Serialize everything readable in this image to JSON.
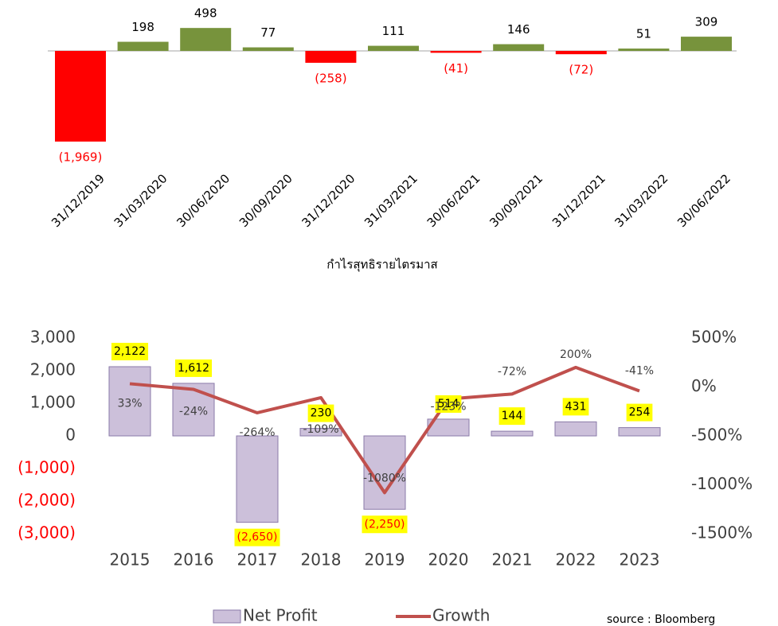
{
  "chart_data": [
    {
      "type": "bar",
      "title": "กำไรสุทธิรายไตรมาส",
      "categories": [
        "31/12/2019",
        "31/03/2020",
        "30/06/2020",
        "30/09/2020",
        "31/12/2020",
        "31/03/2021",
        "30/06/2021",
        "30/09/2021",
        "31/12/2021",
        "31/03/2022",
        "30/06/2022"
      ],
      "values": [
        -1969,
        198,
        498,
        77,
        -258,
        111,
        -41,
        146,
        -72,
        51,
        309
      ],
      "value_labels": [
        "(1,969)",
        "198",
        "498",
        "77",
        "(258)",
        "111",
        "(41)",
        "146",
        "(72)",
        "51",
        "309"
      ],
      "positive_color": "#77933c",
      "negative_color": "#ff0000"
    },
    {
      "type": "bar_line",
      "categories": [
        "2015",
        "2016",
        "2017",
        "2018",
        "2019",
        "2020",
        "2021",
        "2022",
        "2023"
      ],
      "series": [
        {
          "name": "Net Profit",
          "type": "bar",
          "color": "#ccc0da",
          "values": [
            2122,
            1612,
            -2650,
            230,
            -2250,
            514,
            144,
            431,
            254
          ],
          "value_labels": [
            "2,122",
            "1,612",
            "(2,650)",
            "230",
            "(2,250)",
            "514",
            "144",
            "431",
            "254"
          ]
        },
        {
          "name": "Growth",
          "type": "line",
          "axis": "y2",
          "color": "#c0504d",
          "values": [
            33,
            -24,
            -264,
            -109,
            -1080,
            -123,
            -72,
            200,
            -41
          ],
          "value_labels": [
            "33%",
            "-24%",
            "-264%",
            "-109%",
            "-1080%",
            "-123%",
            "-72%",
            "200%",
            "-41%"
          ]
        }
      ],
      "ylim": [
        -3000,
        3000
      ],
      "yticks": [
        {
          "value": 3000,
          "label": "3,000"
        },
        {
          "value": 2000,
          "label": "2,000"
        },
        {
          "value": 1000,
          "label": "1,000"
        },
        0,
        {
          "value": -1000,
          "label": "(1,000)"
        },
        {
          "value": -2000,
          "label": "(2,000)"
        },
        {
          "value": -3000,
          "label": "(3,000)"
        }
      ],
      "y2lim": [
        -1500,
        500
      ],
      "y2ticks": [
        {
          "value": 500,
          "label": "500%"
        },
        {
          "value": 0,
          "label": "0%"
        },
        {
          "value": -500,
          "label": "-500%"
        },
        {
          "value": -1000,
          "label": "-1000%"
        },
        {
          "value": -1500,
          "label": "-1500%"
        }
      ],
      "negative_tick_color": "#ff0000",
      "label_highlight": "#ffff00",
      "source": "source : Bloomberg"
    }
  ]
}
